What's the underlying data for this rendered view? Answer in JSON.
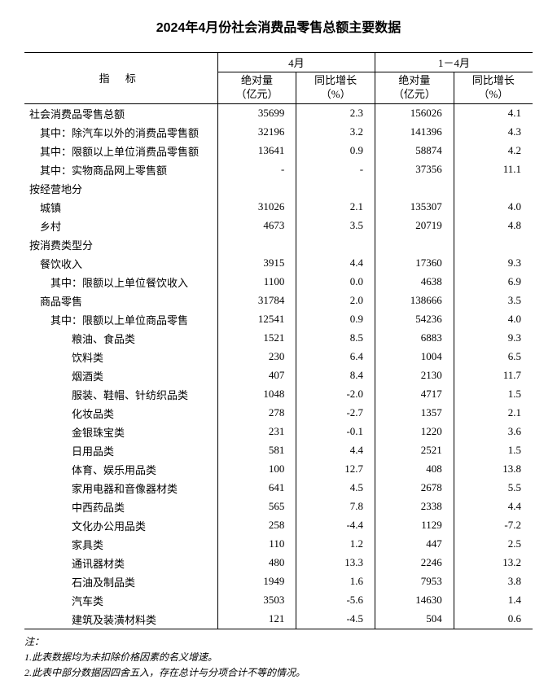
{
  "title": "2024年4月份社会消费品零售总额主要数据",
  "header": {
    "indicator": "指 标",
    "period_a": "4月",
    "period_b": "1－4月",
    "abs": "绝对量",
    "abs_unit": "（亿元）",
    "yoy": "同比增长",
    "yoy_unit": "（%）"
  },
  "rows": [
    {
      "indent": 0,
      "label": "社会消费品零售总额",
      "a1": "35699",
      "a2": "2.3",
      "b1": "156026",
      "b2": "4.1"
    },
    {
      "indent": 1,
      "label": "其中：除汽车以外的消费品零售额",
      "a1": "32196",
      "a2": "3.2",
      "b1": "141396",
      "b2": "4.3"
    },
    {
      "indent": 1,
      "label": "其中：限额以上单位消费品零售额",
      "a1": "13641",
      "a2": "0.9",
      "b1": "58874",
      "b2": "4.2"
    },
    {
      "indent": 1,
      "label": "其中：实物商品网上零售额",
      "a1": "-",
      "a2": "-",
      "b1": "37356",
      "b2": "11.1"
    },
    {
      "indent": 0,
      "label": "按经营地分",
      "a1": "",
      "a2": "",
      "b1": "",
      "b2": ""
    },
    {
      "indent": 1,
      "label": "城镇",
      "a1": "31026",
      "a2": "2.1",
      "b1": "135307",
      "b2": "4.0"
    },
    {
      "indent": 1,
      "label": "乡村",
      "a1": "4673",
      "a2": "3.5",
      "b1": "20719",
      "b2": "4.8"
    },
    {
      "indent": 0,
      "label": "按消费类型分",
      "a1": "",
      "a2": "",
      "b1": "",
      "b2": ""
    },
    {
      "indent": 1,
      "label": "餐饮收入",
      "a1": "3915",
      "a2": "4.4",
      "b1": "17360",
      "b2": "9.3"
    },
    {
      "indent": 2,
      "label": "其中：限额以上单位餐饮收入",
      "a1": "1100",
      "a2": "0.0",
      "b1": "4638",
      "b2": "6.9"
    },
    {
      "indent": 1,
      "label": "商品零售",
      "a1": "31784",
      "a2": "2.0",
      "b1": "138666",
      "b2": "3.5"
    },
    {
      "indent": 2,
      "label": "其中：限额以上单位商品零售",
      "a1": "12541",
      "a2": "0.9",
      "b1": "54236",
      "b2": "4.0"
    },
    {
      "indent": 4,
      "label": "粮油、食品类",
      "a1": "1521",
      "a2": "8.5",
      "b1": "6883",
      "b2": "9.3"
    },
    {
      "indent": 4,
      "label": "饮料类",
      "a1": "230",
      "a2": "6.4",
      "b1": "1004",
      "b2": "6.5"
    },
    {
      "indent": 4,
      "label": "烟酒类",
      "a1": "407",
      "a2": "8.4",
      "b1": "2130",
      "b2": "11.7"
    },
    {
      "indent": 4,
      "label": "服装、鞋帽、针纺织品类",
      "a1": "1048",
      "a2": "-2.0",
      "b1": "4717",
      "b2": "1.5"
    },
    {
      "indent": 4,
      "label": "化妆品类",
      "a1": "278",
      "a2": "-2.7",
      "b1": "1357",
      "b2": "2.1"
    },
    {
      "indent": 4,
      "label": "金银珠宝类",
      "a1": "231",
      "a2": "-0.1",
      "b1": "1220",
      "b2": "3.6"
    },
    {
      "indent": 4,
      "label": "日用品类",
      "a1": "581",
      "a2": "4.4",
      "b1": "2521",
      "b2": "1.5"
    },
    {
      "indent": 4,
      "label": "体育、娱乐用品类",
      "a1": "100",
      "a2": "12.7",
      "b1": "408",
      "b2": "13.8"
    },
    {
      "indent": 4,
      "label": "家用电器和音像器材类",
      "a1": "641",
      "a2": "4.5",
      "b1": "2678",
      "b2": "5.5"
    },
    {
      "indent": 4,
      "label": "中西药品类",
      "a1": "565",
      "a2": "7.8",
      "b1": "2338",
      "b2": "4.4"
    },
    {
      "indent": 4,
      "label": "文化办公用品类",
      "a1": "258",
      "a2": "-4.4",
      "b1": "1129",
      "b2": "-7.2"
    },
    {
      "indent": 4,
      "label": "家具类",
      "a1": "110",
      "a2": "1.2",
      "b1": "447",
      "b2": "2.5"
    },
    {
      "indent": 4,
      "label": "通讯器材类",
      "a1": "480",
      "a2": "13.3",
      "b1": "2246",
      "b2": "13.2"
    },
    {
      "indent": 4,
      "label": "石油及制品类",
      "a1": "1949",
      "a2": "1.6",
      "b1": "7953",
      "b2": "3.8"
    },
    {
      "indent": 4,
      "label": "汽车类",
      "a1": "3503",
      "a2": "-5.6",
      "b1": "14630",
      "b2": "1.4"
    },
    {
      "indent": 4,
      "label": "建筑及装潢材料类",
      "a1": "121",
      "a2": "-4.5",
      "b1": "504",
      "b2": "0.6"
    }
  ],
  "notes": {
    "heading": "注：",
    "lines": [
      "1.此表数据均为未扣除价格因素的名义增速。",
      "2.此表中部分数据因四舍五入，存在总计与分项合计不等的情况。"
    ]
  },
  "style": {
    "indent_unit": "　",
    "col_widths_pct": [
      38,
      15.5,
      15.5,
      15.5,
      15.5
    ]
  }
}
